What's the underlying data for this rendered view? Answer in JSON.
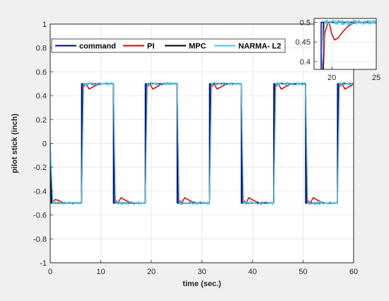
{
  "chart_data": [
    {
      "type": "line",
      "title": "",
      "xlabel": "time (sec.)",
      "ylabel": "pilot stick (inch)",
      "xlim": [
        0,
        60
      ],
      "ylim": [
        -1,
        1
      ],
      "x_ticks": [
        "0",
        "10",
        "20",
        "30",
        "40",
        "50",
        "60"
      ],
      "y_ticks": [
        "-1",
        "-0.8",
        "-0.6",
        "-0.4",
        "-0.2",
        "0",
        "0.2",
        "0.4",
        "0.6",
        "0.8",
        "1"
      ],
      "grid": true,
      "legend": {
        "position": "top",
        "orientation": "horizontal"
      },
      "series": [
        {
          "name": "command",
          "color": "#0000a0",
          "points": [
            [
              0,
              0
            ],
            [
              0.2,
              -0.5
            ],
            [
              6.2,
              -0.5
            ],
            [
              6.2,
              0.5
            ],
            [
              12.5,
              0.5
            ],
            [
              12.5,
              -0.5
            ],
            [
              18.8,
              -0.5
            ],
            [
              18.8,
              0.5
            ],
            [
              25.1,
              0.5
            ],
            [
              25.1,
              -0.5
            ],
            [
              31.5,
              -0.5
            ],
            [
              31.5,
              0.5
            ],
            [
              37.8,
              0.5
            ],
            [
              37.8,
              -0.5
            ],
            [
              44.2,
              -0.5
            ],
            [
              44.2,
              0.5
            ],
            [
              50.5,
              0.5
            ],
            [
              50.5,
              -0.5
            ],
            [
              56.8,
              -0.5
            ],
            [
              56.8,
              0.5
            ],
            [
              60,
              0.5
            ]
          ]
        },
        {
          "name": "PI",
          "color": "#e00000",
          "points": [
            [
              0,
              0
            ],
            [
              0.4,
              -0.49
            ],
            [
              1,
              -0.47
            ],
            [
              1.8,
              -0.48
            ],
            [
              2.6,
              -0.5
            ],
            [
              6.2,
              -0.5
            ],
            [
              6.5,
              0.47
            ],
            [
              7.1,
              0.5
            ],
            [
              7.7,
              0.455
            ],
            [
              8.3,
              0.47
            ],
            [
              9.2,
              0.49
            ],
            [
              10.1,
              0.5
            ],
            [
              12.5,
              0.5
            ],
            [
              12.8,
              -0.47
            ],
            [
              13.4,
              -0.5
            ],
            [
              14,
              -0.455
            ],
            [
              14.6,
              -0.47
            ],
            [
              15.5,
              -0.49
            ],
            [
              16.4,
              -0.5
            ],
            [
              18.8,
              -0.5
            ],
            [
              19.1,
              0.47
            ],
            [
              19.7,
              0.5
            ],
            [
              20.3,
              0.455
            ],
            [
              20.9,
              0.47
            ],
            [
              21.8,
              0.49
            ],
            [
              22.7,
              0.5
            ],
            [
              25.1,
              0.5
            ],
            [
              25.4,
              -0.47
            ],
            [
              26,
              -0.5
            ],
            [
              26.6,
              -0.455
            ],
            [
              27.2,
              -0.47
            ],
            [
              28.1,
              -0.49
            ],
            [
              29,
              -0.5
            ],
            [
              31.5,
              -0.5
            ],
            [
              31.8,
              0.47
            ],
            [
              32.4,
              0.5
            ],
            [
              33,
              0.455
            ],
            [
              33.6,
              0.47
            ],
            [
              34.5,
              0.49
            ],
            [
              35.4,
              0.5
            ],
            [
              37.8,
              0.5
            ],
            [
              38.1,
              -0.47
            ],
            [
              38.7,
              -0.5
            ],
            [
              39.3,
              -0.455
            ],
            [
              39.9,
              -0.47
            ],
            [
              40.8,
              -0.49
            ],
            [
              41.7,
              -0.5
            ],
            [
              44.2,
              -0.5
            ],
            [
              44.5,
              0.47
            ],
            [
              45.1,
              0.5
            ],
            [
              45.7,
              0.455
            ],
            [
              46.3,
              0.47
            ],
            [
              47.2,
              0.49
            ],
            [
              48.1,
              0.5
            ],
            [
              50.5,
              0.5
            ],
            [
              50.8,
              -0.47
            ],
            [
              51.4,
              -0.5
            ],
            [
              52,
              -0.455
            ],
            [
              52.6,
              -0.47
            ],
            [
              53.5,
              -0.49
            ],
            [
              54.4,
              -0.5
            ],
            [
              56.8,
              -0.5
            ],
            [
              57.1,
              0.47
            ],
            [
              57.7,
              0.5
            ],
            [
              58.3,
              0.455
            ],
            [
              58.9,
              0.47
            ],
            [
              59.8,
              0.49
            ],
            [
              60,
              0.5
            ]
          ]
        },
        {
          "name": "MPC",
          "color": "#000000",
          "points": [
            [
              0,
              0
            ],
            [
              0.3,
              -0.5
            ],
            [
              6.2,
              -0.5
            ],
            [
              6.45,
              0.5
            ],
            [
              12.5,
              0.5
            ],
            [
              12.75,
              -0.5
            ],
            [
              18.8,
              -0.5
            ],
            [
              19.05,
              0.5
            ],
            [
              25.1,
              0.5
            ],
            [
              25.35,
              -0.5
            ],
            [
              31.5,
              -0.5
            ],
            [
              31.75,
              0.5
            ],
            [
              37.8,
              0.5
            ],
            [
              38.05,
              -0.5
            ],
            [
              44.2,
              -0.5
            ],
            [
              44.45,
              0.5
            ],
            [
              50.5,
              0.5
            ],
            [
              50.75,
              -0.5
            ],
            [
              56.8,
              -0.5
            ],
            [
              57.05,
              0.5
            ],
            [
              60,
              0.5
            ]
          ]
        },
        {
          "name": "NARMA- L2",
          "color": "#4ec0e8",
          "noise": 0.012,
          "points": [
            [
              0,
              0
            ],
            [
              0.5,
              -0.5
            ],
            [
              6.2,
              -0.5
            ],
            [
              6.6,
              0.5
            ],
            [
              12.5,
              0.5
            ],
            [
              12.9,
              -0.5
            ],
            [
              18.8,
              -0.5
            ],
            [
              19.2,
              0.5
            ],
            [
              25.1,
              0.5
            ],
            [
              25.5,
              -0.5
            ],
            [
              31.5,
              -0.5
            ],
            [
              31.9,
              0.5
            ],
            [
              37.8,
              0.5
            ],
            [
              38.2,
              -0.5
            ],
            [
              44.2,
              -0.5
            ],
            [
              44.6,
              0.5
            ],
            [
              50.5,
              0.5
            ],
            [
              50.9,
              -0.5
            ],
            [
              56.8,
              -0.5
            ],
            [
              57.2,
              0.5
            ],
            [
              60,
              0.5
            ]
          ]
        }
      ]
    },
    {
      "type": "line",
      "title": "",
      "xlabel": "",
      "ylabel": "",
      "xlim": [
        18,
        25
      ],
      "ylim": [
        0.38,
        0.51
      ],
      "x_ticks": [
        "20",
        "25"
      ],
      "y_ticks": [
        "0.4",
        "0.45",
        "0.5"
      ],
      "grid": true,
      "series": [
        {
          "name": "command",
          "color": "#0000a0",
          "points": [
            [
              18.8,
              0.38
            ],
            [
              18.8,
              0.5
            ],
            [
              25,
              0.5
            ]
          ]
        },
        {
          "name": "PI",
          "color": "#e00000",
          "points": [
            [
              19.05,
              0.38
            ],
            [
              19.2,
              0.47
            ],
            [
              19.5,
              0.495
            ],
            [
              19.7,
              0.5
            ],
            [
              20.0,
              0.47
            ],
            [
              20.3,
              0.455
            ],
            [
              20.7,
              0.46
            ],
            [
              21.2,
              0.475
            ],
            [
              21.8,
              0.49
            ],
            [
              22.7,
              0.5
            ],
            [
              25,
              0.5
            ]
          ]
        },
        {
          "name": "MPC",
          "color": "#000000",
          "points": [
            [
              19.0,
              0.38
            ],
            [
              19.05,
              0.5
            ],
            [
              25,
              0.5
            ]
          ]
        },
        {
          "name": "NARMA- L2",
          "color": "#4ec0e8",
          "noise": 0.006,
          "points": [
            [
              18.9,
              0.38
            ],
            [
              19.2,
              0.5
            ],
            [
              25,
              0.5
            ]
          ]
        }
      ]
    }
  ]
}
